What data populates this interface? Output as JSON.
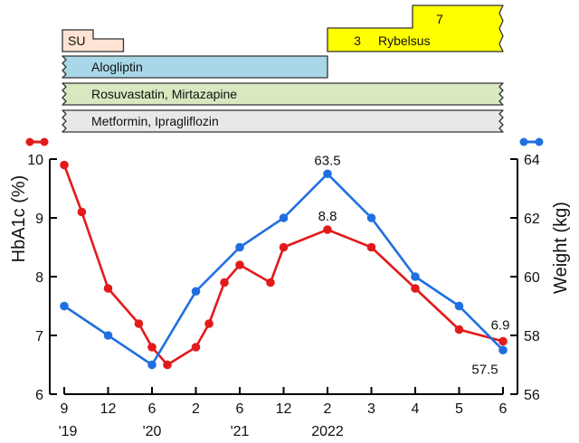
{
  "chart_data": {
    "type": "line",
    "x_ticks": [
      "9",
      "12",
      "6",
      "2",
      "6",
      "12",
      "2",
      "3",
      "4",
      "5",
      "6"
    ],
    "x_year_labels": [
      "'19",
      "'20",
      "'21",
      "2022"
    ],
    "y_left": {
      "label": "HbA1c (%)",
      "ticks": [
        6,
        7,
        8,
        9,
        10
      ],
      "lim": [
        6,
        10
      ]
    },
    "y_right": {
      "label": "Weight (kg)",
      "ticks": [
        56,
        58,
        60,
        62,
        64
      ],
      "lim": [
        56,
        64
      ]
    },
    "series": [
      {
        "axis": "left",
        "color": "#e31a1c",
        "points": [
          {
            "x": 0,
            "y": 9.9
          },
          {
            "x": 0.4,
            "y": 9.1
          },
          {
            "x": 1,
            "y": 7.8
          },
          {
            "x": 1.7,
            "y": 7.2
          },
          {
            "x": 2,
            "y": 6.8
          },
          {
            "x": 2.35,
            "y": 6.5
          },
          {
            "x": 3,
            "y": 6.8
          },
          {
            "x": 3.3,
            "y": 7.2
          },
          {
            "x": 3.65,
            "y": 7.9
          },
          {
            "x": 4,
            "y": 8.2
          },
          {
            "x": 4.7,
            "y": 7.9
          },
          {
            "x": 5,
            "y": 8.5
          },
          {
            "x": 6,
            "y": 8.8
          },
          {
            "x": 7,
            "y": 8.5
          },
          {
            "x": 8,
            "y": 7.8
          },
          {
            "x": 9,
            "y": 7.1
          },
          {
            "x": 10,
            "y": 6.9
          }
        ]
      },
      {
        "axis": "right",
        "color": "#1f6fe0",
        "points": [
          {
            "x": 0,
            "y": 59
          },
          {
            "x": 1,
            "y": 58
          },
          {
            "x": 2,
            "y": 57
          },
          {
            "x": 3,
            "y": 59.5
          },
          {
            "x": 4,
            "y": 61
          },
          {
            "x": 5,
            "y": 62
          },
          {
            "x": 6,
            "y": 63.5
          },
          {
            "x": 7,
            "y": 62
          },
          {
            "x": 8,
            "y": 60
          },
          {
            "x": 9,
            "y": 59
          },
          {
            "x": 10,
            "y": 57.5
          }
        ]
      }
    ],
    "annotations": [
      {
        "text": "63.5",
        "series": 1,
        "point": 6
      },
      {
        "text": "8.8",
        "series": 0,
        "point": 12
      },
      {
        "text": "6.9",
        "series": 0,
        "point": 16
      },
      {
        "text": "57.5",
        "series": 1,
        "point": 10
      }
    ],
    "medication_bars": [
      {
        "label": "SU",
        "x_start": 0,
        "x_end": 1.35,
        "color": "#fde3d3"
      },
      {
        "label": "3",
        "x_start": 6,
        "x_end": 10,
        "color": "#ffff00"
      },
      {
        "label": "Rybelsus",
        "x_start": 6,
        "x_end": 10,
        "color": "#ffff00"
      },
      {
        "label": "7",
        "x_start": 8,
        "x_end": 10,
        "color": "#ffff00"
      },
      {
        "label": "Alogliptin",
        "x_start": 0,
        "x_end": 6,
        "color": "#a8d8e8"
      },
      {
        "label": "Rosuvastatin, Mirtazapine",
        "x_start": 0,
        "x_end": 10,
        "color": "#d8e8c0"
      },
      {
        "label": "Metformin,  Ipragliflozin",
        "x_start": 0,
        "x_end": 10,
        "color": "#e8e8e8"
      }
    ]
  }
}
